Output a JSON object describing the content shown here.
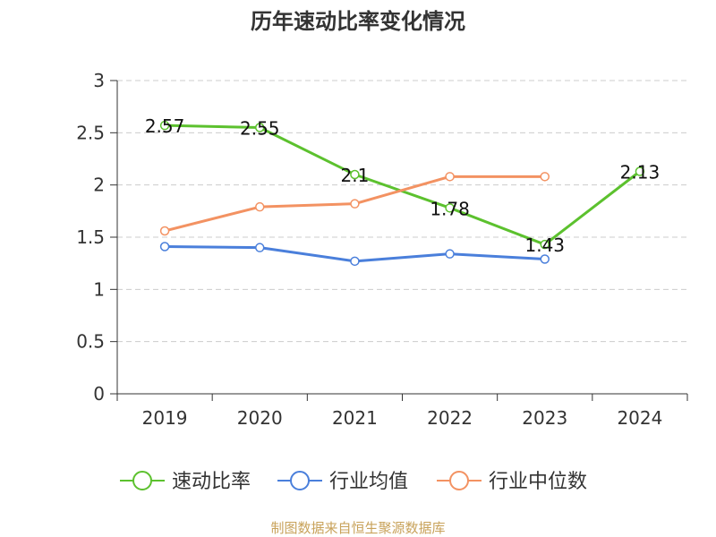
{
  "chart_data": {
    "type": "line",
    "title": "历年速动比率变化情况",
    "categories": [
      "2019",
      "2020",
      "2021",
      "2022",
      "2023",
      "2024"
    ],
    "ylim": [
      0,
      3
    ],
    "yticks": [
      "0",
      "0.5",
      "1",
      "1.5",
      "2",
      "2.5",
      "3"
    ],
    "ytick_values": [
      0,
      0.5,
      1,
      1.5,
      2,
      2.5,
      3
    ],
    "grid": true,
    "legend_position": "bottom",
    "series": [
      {
        "name": "速动比率",
        "color": "#5cc12e",
        "values": [
          2.57,
          2.55,
          2.1,
          1.78,
          1.43,
          2.13
        ],
        "labels": [
          "2.57",
          "2.55",
          "2.1",
          "1.78",
          "1.43",
          "2.13"
        ]
      },
      {
        "name": "行业均值",
        "color": "#4a7fdb",
        "values": [
          1.41,
          1.4,
          1.27,
          1.34,
          1.29,
          null
        ]
      },
      {
        "name": "行业中位数",
        "color": "#f39262",
        "values": [
          1.56,
          1.79,
          1.82,
          2.08,
          2.08,
          null
        ]
      }
    ]
  },
  "footer": {
    "source": "制图数据来自恒生聚源数据库"
  }
}
